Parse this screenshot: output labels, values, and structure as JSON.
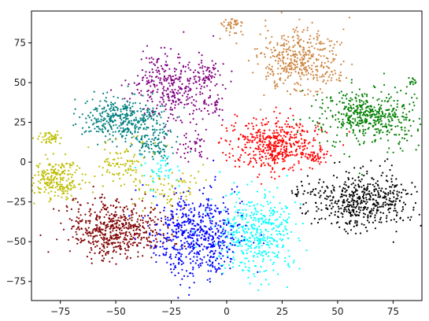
{
  "chart_data": {
    "type": "scatter",
    "title": "",
    "xlabel": "",
    "ylabel": "",
    "xlim": [
      -88,
      88
    ],
    "ylim": [
      -87,
      95
    ],
    "xticks": [
      -75,
      -50,
      -25,
      0,
      25,
      50,
      75
    ],
    "yticks": [
      -75,
      -50,
      -25,
      0,
      25,
      50,
      75
    ],
    "grid": false,
    "legend": "none",
    "series": [
      {
        "color": "#cd853f",
        "clusters": [
          {
            "cx": 33,
            "cy": 63,
            "sx": 9,
            "sy": 10,
            "n": 420
          },
          {
            "cx": 3,
            "cy": 86,
            "sx": 2.5,
            "sy": 2.5,
            "n": 40
          }
        ]
      },
      {
        "color": "#800080",
        "clusters": [
          {
            "cx": -26,
            "cy": 47,
            "sx": 9,
            "sy": 11,
            "n": 330
          },
          {
            "cx": -9,
            "cy": 55,
            "sx": 3,
            "sy": 4,
            "n": 60
          },
          {
            "cx": -14,
            "cy": 9,
            "sx": 3,
            "sy": 5,
            "n": 40
          },
          {
            "cx": -6,
            "cy": 36,
            "sx": 2.5,
            "sy": 3,
            "n": 30
          }
        ]
      },
      {
        "color": "#008080",
        "clusters": [
          {
            "cx": -47,
            "cy": 28,
            "sx": 9,
            "sy": 7,
            "n": 380
          },
          {
            "cx": -33,
            "cy": 12,
            "sx": 5,
            "sy": 6,
            "n": 90
          }
        ]
      },
      {
        "color": "#008000",
        "clusters": [
          {
            "cx": 64,
            "cy": 29,
            "sx": 11,
            "sy": 9,
            "n": 480
          },
          {
            "cx": 84,
            "cy": 51,
            "sx": 1.5,
            "sy": 1,
            "n": 12
          }
        ]
      },
      {
        "color": "#ff0000",
        "clusters": [
          {
            "cx": 22,
            "cy": 11,
            "sx": 10,
            "sy": 8,
            "n": 480
          },
          {
            "cx": 40,
            "cy": 3,
            "sx": 3,
            "sy": 2,
            "n": 40
          }
        ]
      },
      {
        "color": "#bdbd00",
        "clusters": [
          {
            "cx": -77,
            "cy": -11,
            "sx": 6,
            "sy": 6,
            "n": 240
          },
          {
            "cx": -80,
            "cy": 15,
            "sx": 3,
            "sy": 2,
            "n": 45
          },
          {
            "cx": -47,
            "cy": 1,
            "sx": 5,
            "sy": 6,
            "n": 90
          },
          {
            "cx": -28,
            "cy": -15,
            "sx": 8,
            "sy": 8,
            "n": 80
          }
        ]
      },
      {
        "color": "#000000",
        "clusters": [
          {
            "cx": 62,
            "cy": -25,
            "sx": 12,
            "sy": 9,
            "n": 520
          },
          {
            "cx": 32,
            "cy": -19,
            "sx": 1.5,
            "sy": 1.5,
            "n": 10
          }
        ]
      },
      {
        "color": "#800000",
        "clusters": [
          {
            "cx": -50,
            "cy": -42,
            "sx": 11,
            "sy": 9,
            "n": 560
          }
        ]
      },
      {
        "color": "#00ffff",
        "clusters": [
          {
            "cx": 13,
            "cy": -45,
            "sx": 9,
            "sy": 13,
            "n": 450
          },
          {
            "cx": -30,
            "cy": -4,
            "sx": 5,
            "sy": 5,
            "n": 40
          }
        ]
      },
      {
        "color": "#0000ff",
        "clusters": [
          {
            "cx": -14,
            "cy": -46,
            "sx": 10,
            "sy": 13,
            "n": 580
          }
        ]
      }
    ]
  }
}
